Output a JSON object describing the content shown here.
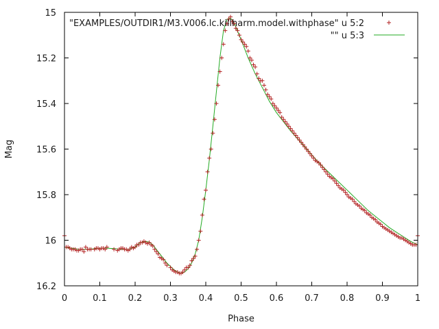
{
  "chart_data": {
    "type": "scatter",
    "xlabel": "Phase",
    "ylabel": "Mag",
    "xlim": [
      0,
      1
    ],
    "ylim": [
      15,
      16.2
    ],
    "y_inverted": true,
    "grid": false,
    "legend_position": "top-right",
    "x_ticks": [
      "0",
      "0.1",
      "0.2",
      "0.3",
      "0.4",
      "0.5",
      "0.6",
      "0.7",
      "0.8",
      "0.9",
      "1"
    ],
    "y_ticks": [
      "15",
      "15.2",
      "15.4",
      "15.6",
      "15.8",
      "16",
      "16.2"
    ],
    "series": [
      {
        "name": "\"EXAMPLES/OUTDIR1/M3.V006.lc.killharm.model.withphase\" u 5:2",
        "style": "points",
        "marker": "plus",
        "color": "#b22222",
        "x": [
          0.0,
          0.005,
          0.01,
          0.015,
          0.02,
          0.025,
          0.03,
          0.035,
          0.04,
          0.045,
          0.05,
          0.055,
          0.06,
          0.065,
          0.07,
          0.075,
          0.085,
          0.09,
          0.095,
          0.1,
          0.105,
          0.11,
          0.115,
          0.12,
          0.14,
          0.15,
          0.155,
          0.16,
          0.165,
          0.17,
          0.175,
          0.18,
          0.185,
          0.19,
          0.195,
          0.2,
          0.205,
          0.21,
          0.215,
          0.22,
          0.225,
          0.23,
          0.235,
          0.24,
          0.245,
          0.25,
          0.255,
          0.26,
          0.265,
          0.27,
          0.275,
          0.28,
          0.285,
          0.29,
          0.3,
          0.305,
          0.31,
          0.315,
          0.32,
          0.325,
          0.33,
          0.335,
          0.34,
          0.345,
          0.35,
          0.355,
          0.36,
          0.365,
          0.37,
          0.375,
          0.38,
          0.385,
          0.39,
          0.395,
          0.4,
          0.405,
          0.41,
          0.415,
          0.42,
          0.425,
          0.43,
          0.435,
          0.44,
          0.445,
          0.45,
          0.455,
          0.46,
          0.465,
          0.47,
          0.475,
          0.48,
          0.485,
          0.49,
          0.495,
          0.5,
          0.505,
          0.51,
          0.515,
          0.52,
          0.525,
          0.53,
          0.535,
          0.54,
          0.545,
          0.55,
          0.555,
          0.56,
          0.565,
          0.57,
          0.575,
          0.58,
          0.585,
          0.59,
          0.595,
          0.6,
          0.605,
          0.61,
          0.615,
          0.62,
          0.625,
          0.63,
          0.635,
          0.64,
          0.645,
          0.65,
          0.655,
          0.66,
          0.665,
          0.67,
          0.675,
          0.68,
          0.685,
          0.69,
          0.695,
          0.7,
          0.705,
          0.71,
          0.715,
          0.72,
          0.725,
          0.73,
          0.735,
          0.74,
          0.745,
          0.75,
          0.755,
          0.76,
          0.765,
          0.77,
          0.775,
          0.78,
          0.785,
          0.79,
          0.795,
          0.8,
          0.805,
          0.81,
          0.815,
          0.82,
          0.825,
          0.83,
          0.835,
          0.84,
          0.845,
          0.85,
          0.855,
          0.86,
          0.865,
          0.87,
          0.875,
          0.88,
          0.885,
          0.89,
          0.895,
          0.9,
          0.905,
          0.91,
          0.915,
          0.92,
          0.925,
          0.93,
          0.935,
          0.94,
          0.945,
          0.95,
          0.955,
          0.96,
          0.965,
          0.97,
          0.975,
          0.98,
          0.985,
          0.99,
          0.995,
          1.0
        ],
        "y": [
          15.98,
          16.03,
          16.03,
          16.035,
          16.04,
          16.04,
          16.04,
          16.045,
          16.045,
          16.04,
          16.04,
          16.05,
          16.03,
          16.04,
          16.04,
          16.04,
          16.04,
          16.035,
          16.035,
          16.04,
          16.035,
          16.035,
          16.04,
          16.03,
          16.04,
          16.045,
          16.04,
          16.035,
          16.035,
          16.04,
          16.04,
          16.045,
          16.04,
          16.03,
          16.035,
          16.03,
          16.02,
          16.02,
          16.01,
          16.01,
          16.005,
          16.01,
          16.015,
          16.01,
          16.02,
          16.025,
          16.04,
          16.05,
          16.06,
          16.075,
          16.08,
          16.085,
          16.1,
          16.11,
          16.12,
          16.13,
          16.135,
          16.14,
          16.14,
          16.145,
          16.145,
          16.14,
          16.13,
          16.12,
          16.12,
          16.11,
          16.09,
          16.08,
          16.07,
          16.04,
          16.0,
          15.96,
          15.89,
          15.82,
          15.78,
          15.7,
          15.64,
          15.6,
          15.53,
          15.47,
          15.4,
          15.32,
          15.26,
          15.2,
          15.14,
          15.08,
          15.05,
          15.03,
          15.02,
          15.04,
          15.05,
          15.07,
          15.08,
          15.1,
          15.12,
          15.13,
          15.14,
          15.15,
          15.17,
          15.2,
          15.21,
          15.23,
          15.24,
          15.27,
          15.29,
          15.3,
          15.3,
          15.32,
          15.34,
          15.36,
          15.37,
          15.38,
          15.4,
          15.41,
          15.42,
          15.43,
          15.44,
          15.46,
          15.47,
          15.48,
          15.49,
          15.5,
          15.51,
          15.52,
          15.53,
          15.54,
          15.55,
          15.56,
          15.57,
          15.58,
          15.59,
          15.6,
          15.61,
          15.62,
          15.63,
          15.64,
          15.65,
          15.655,
          15.66,
          15.67,
          15.68,
          15.69,
          15.7,
          15.71,
          15.72,
          15.725,
          15.73,
          15.74,
          15.75,
          15.76,
          15.77,
          15.775,
          15.78,
          15.79,
          15.8,
          15.81,
          15.815,
          15.82,
          15.83,
          15.84,
          15.845,
          15.85,
          15.86,
          15.865,
          15.87,
          15.88,
          15.885,
          15.89,
          15.9,
          15.905,
          15.91,
          15.92,
          15.925,
          15.93,
          15.94,
          15.945,
          15.95,
          15.955,
          15.96,
          15.965,
          15.97,
          15.975,
          15.98,
          15.985,
          15.99,
          15.99,
          15.995,
          16.0,
          16.005,
          16.01,
          16.015,
          16.02,
          16.02,
          16.02,
          15.98
        ]
      },
      {
        "name": "\"\" u 5:3",
        "style": "line",
        "color": "#22aa22",
        "x": [
          0.0,
          0.02,
          0.04,
          0.06,
          0.08,
          0.1,
          0.12,
          0.14,
          0.16,
          0.18,
          0.2,
          0.21,
          0.22,
          0.23,
          0.24,
          0.25,
          0.26,
          0.27,
          0.28,
          0.29,
          0.3,
          0.31,
          0.32,
          0.33,
          0.34,
          0.35,
          0.36,
          0.37,
          0.38,
          0.39,
          0.4,
          0.41,
          0.42,
          0.43,
          0.44,
          0.45,
          0.46,
          0.47,
          0.48,
          0.5,
          0.52,
          0.54,
          0.56,
          0.58,
          0.6,
          0.62,
          0.64,
          0.66,
          0.68,
          0.7,
          0.72,
          0.74,
          0.76,
          0.78,
          0.8,
          0.82,
          0.84,
          0.86,
          0.88,
          0.9,
          0.92,
          0.94,
          0.96,
          0.98,
          1.0
        ],
        "y": [
          16.03,
          16.035,
          16.04,
          16.04,
          16.038,
          16.035,
          16.035,
          16.037,
          16.04,
          16.04,
          16.03,
          16.015,
          16.008,
          16.005,
          16.008,
          16.02,
          16.04,
          16.06,
          16.08,
          16.1,
          16.115,
          16.13,
          16.14,
          16.145,
          16.14,
          16.125,
          16.1,
          16.06,
          16.0,
          15.9,
          15.78,
          15.65,
          15.5,
          15.35,
          15.2,
          15.08,
          15.03,
          15.025,
          15.045,
          15.12,
          15.2,
          15.27,
          15.33,
          15.39,
          15.44,
          15.48,
          15.52,
          15.555,
          15.59,
          15.625,
          15.66,
          15.69,
          15.72,
          15.75,
          15.78,
          15.81,
          15.84,
          15.87,
          15.895,
          15.92,
          15.945,
          15.965,
          15.985,
          16.005,
          16.02
        ]
      }
    ]
  }
}
